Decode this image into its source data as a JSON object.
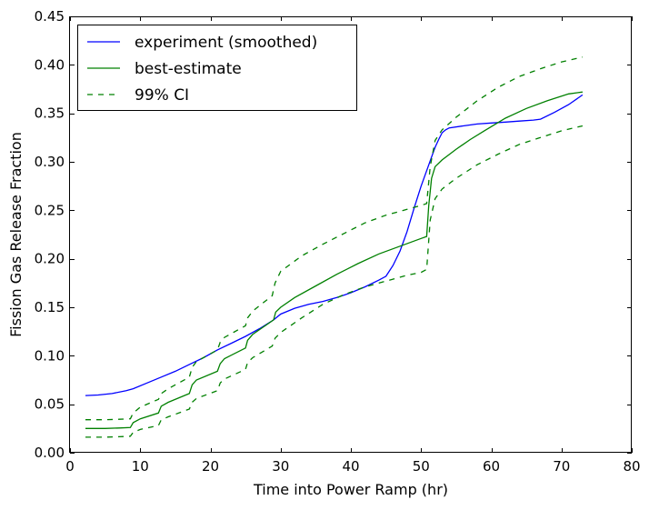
{
  "chart_data": {
    "type": "line",
    "title": "",
    "xlabel": "Time into Power Ramp (hr)",
    "ylabel": "Fission Gas Release Fraction",
    "xlim": [
      0,
      80
    ],
    "ylim": [
      0.0,
      0.45
    ],
    "xticks": [
      0,
      10,
      20,
      30,
      40,
      50,
      60,
      70,
      80
    ],
    "xtick_labels": [
      "0",
      "10",
      "20",
      "30",
      "40",
      "50",
      "60",
      "70",
      "80"
    ],
    "yticks": [
      0.0,
      0.05,
      0.1,
      0.15,
      0.2,
      0.25,
      0.3,
      0.35,
      0.4,
      0.45
    ],
    "ytick_labels": [
      "0.00",
      "0.05",
      "0.10",
      "0.15",
      "0.20",
      "0.25",
      "0.30",
      "0.35",
      "0.40",
      "0.45"
    ],
    "grid": false,
    "legend_position": "top-left",
    "series": [
      {
        "name": "experiment (smoothed)",
        "color": "#0000ff",
        "style": "solid",
        "points": [
          [
            2.2,
            0.059
          ],
          [
            4,
            0.0595
          ],
          [
            6,
            0.061
          ],
          [
            8,
            0.064
          ],
          [
            9,
            0.066
          ],
          [
            11,
            0.072
          ],
          [
            13,
            0.078
          ],
          [
            15,
            0.084
          ],
          [
            17,
            0.091
          ],
          [
            19,
            0.098
          ],
          [
            21,
            0.106
          ],
          [
            23,
            0.113
          ],
          [
            25,
            0.12
          ],
          [
            27,
            0.128
          ],
          [
            29,
            0.137
          ],
          [
            30,
            0.143
          ],
          [
            32,
            0.149
          ],
          [
            34,
            0.153
          ],
          [
            36,
            0.156
          ],
          [
            38,
            0.16
          ],
          [
            40,
            0.165
          ],
          [
            42,
            0.171
          ],
          [
            44,
            0.178
          ],
          [
            45,
            0.182
          ],
          [
            46,
            0.193
          ],
          [
            47,
            0.208
          ],
          [
            48,
            0.228
          ],
          [
            49,
            0.252
          ],
          [
            50,
            0.275
          ],
          [
            51,
            0.295
          ],
          [
            51.5,
            0.305
          ],
          [
            52,
            0.315
          ],
          [
            52.5,
            0.323
          ],
          [
            53,
            0.33
          ],
          [
            53.5,
            0.333
          ],
          [
            54,
            0.335
          ],
          [
            56,
            0.337
          ],
          [
            58,
            0.339
          ],
          [
            60,
            0.34
          ],
          [
            62,
            0.341
          ],
          [
            64,
            0.342
          ],
          [
            66,
            0.343
          ],
          [
            67,
            0.344
          ],
          [
            69,
            0.351
          ],
          [
            71,
            0.359
          ],
          [
            73,
            0.369
          ]
        ]
      },
      {
        "name": "best-estimate",
        "color": "#008000",
        "style": "solid",
        "points": [
          [
            2.2,
            0.025
          ],
          [
            5,
            0.025
          ],
          [
            7,
            0.0255
          ],
          [
            8.6,
            0.026
          ],
          [
            9,
            0.031
          ],
          [
            10,
            0.035
          ],
          [
            12.6,
            0.041
          ],
          [
            13,
            0.048
          ],
          [
            14,
            0.052
          ],
          [
            17,
            0.061
          ],
          [
            17.4,
            0.07
          ],
          [
            18,
            0.075
          ],
          [
            21,
            0.084
          ],
          [
            21.4,
            0.092
          ],
          [
            22,
            0.097
          ],
          [
            25,
            0.108
          ],
          [
            25.3,
            0.116
          ],
          [
            26,
            0.122
          ],
          [
            29,
            0.137
          ],
          [
            29.3,
            0.145
          ],
          [
            30,
            0.15
          ],
          [
            32,
            0.16
          ],
          [
            35,
            0.172
          ],
          [
            38,
            0.184
          ],
          [
            41,
            0.195
          ],
          [
            44,
            0.205
          ],
          [
            47,
            0.213
          ],
          [
            50,
            0.221
          ],
          [
            50.8,
            0.223
          ],
          [
            51.1,
            0.255
          ],
          [
            51.5,
            0.283
          ],
          [
            52,
            0.295
          ],
          [
            53,
            0.302
          ],
          [
            55,
            0.313
          ],
          [
            57,
            0.323
          ],
          [
            59,
            0.332
          ],
          [
            62,
            0.345
          ],
          [
            65,
            0.355
          ],
          [
            68,
            0.363
          ],
          [
            71,
            0.37
          ],
          [
            73,
            0.372
          ]
        ]
      },
      {
        "name": "99% CI",
        "color": "#008000",
        "style": "dashed",
        "points": [
          [
            2.2,
            0.034
          ],
          [
            5,
            0.034
          ],
          [
            7,
            0.0345
          ],
          [
            8.6,
            0.035
          ],
          [
            9,
            0.041
          ],
          [
            10,
            0.047
          ],
          [
            12.6,
            0.055
          ],
          [
            13,
            0.061
          ],
          [
            14,
            0.066
          ],
          [
            17,
            0.078
          ],
          [
            17.4,
            0.088
          ],
          [
            18,
            0.094
          ],
          [
            21,
            0.106
          ],
          [
            21.4,
            0.114
          ],
          [
            22,
            0.119
          ],
          [
            25,
            0.131
          ],
          [
            25.3,
            0.139
          ],
          [
            26,
            0.146
          ],
          [
            28.8,
            0.162
          ],
          [
            29.2,
            0.175
          ],
          [
            30,
            0.187
          ],
          [
            33,
            0.203
          ],
          [
            36,
            0.215
          ],
          [
            39,
            0.226
          ],
          [
            42,
            0.237
          ],
          [
            45,
            0.245
          ],
          [
            48,
            0.251
          ],
          [
            50,
            0.255
          ],
          [
            50.8,
            0.257
          ],
          [
            51.3,
            0.295
          ],
          [
            52,
            0.322
          ],
          [
            53,
            0.333
          ],
          [
            55,
            0.346
          ],
          [
            58,
            0.363
          ],
          [
            61,
            0.377
          ],
          [
            64,
            0.388
          ],
          [
            67,
            0.396
          ],
          [
            70,
            0.403
          ],
          [
            73,
            0.408
          ]
        ]
      },
      {
        "name": "",
        "color": "#008000",
        "style": "dashed",
        "points": [
          [
            2.2,
            0.016
          ],
          [
            5,
            0.016
          ],
          [
            7,
            0.0165
          ],
          [
            8.6,
            0.017
          ],
          [
            9,
            0.021
          ],
          [
            10,
            0.024
          ],
          [
            12.6,
            0.028
          ],
          [
            13,
            0.034
          ],
          [
            14,
            0.037
          ],
          [
            17,
            0.045
          ],
          [
            17.4,
            0.052
          ],
          [
            18,
            0.056
          ],
          [
            21,
            0.064
          ],
          [
            21.4,
            0.072
          ],
          [
            22,
            0.076
          ],
          [
            25,
            0.086
          ],
          [
            25.3,
            0.093
          ],
          [
            26,
            0.098
          ],
          [
            28.8,
            0.11
          ],
          [
            29.2,
            0.118
          ],
          [
            30,
            0.124
          ],
          [
            33,
            0.139
          ],
          [
            36,
            0.153
          ],
          [
            39,
            0.163
          ],
          [
            42,
            0.171
          ],
          [
            45,
            0.177
          ],
          [
            48,
            0.183
          ],
          [
            50,
            0.186
          ],
          [
            50.8,
            0.189
          ],
          [
            51.3,
            0.24
          ],
          [
            52,
            0.262
          ],
          [
            53,
            0.272
          ],
          [
            55,
            0.283
          ],
          [
            58,
            0.297
          ],
          [
            61,
            0.308
          ],
          [
            64,
            0.318
          ],
          [
            67,
            0.325
          ],
          [
            70,
            0.332
          ],
          [
            73,
            0.337
          ]
        ]
      }
    ],
    "legend_entries": [
      {
        "label": "experiment (smoothed)",
        "color": "#0000ff",
        "style": "solid"
      },
      {
        "label": "best-estimate",
        "color": "#008000",
        "style": "solid"
      },
      {
        "label": "99% CI",
        "color": "#008000",
        "style": "dashed"
      }
    ]
  }
}
